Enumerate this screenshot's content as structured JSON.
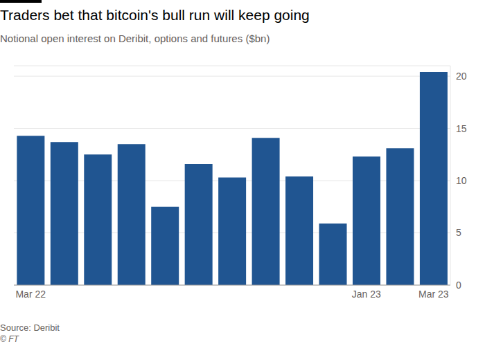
{
  "chart_data": {
    "type": "bar",
    "title": "Traders bet that bitcoin's bull run will keep going",
    "subtitle": "Notional open interest on Deribit, options and futures ($bn)",
    "source": "Source: Deribit",
    "copyright": "© FT",
    "categories": [
      "Mar 22",
      null,
      null,
      null,
      null,
      null,
      null,
      null,
      null,
      null,
      "Jan 23",
      null,
      "Mar 23"
    ],
    "values": [
      14.3,
      13.7,
      12.5,
      13.5,
      7.5,
      11.6,
      10.3,
      14.1,
      10.4,
      5.9,
      12.3,
      13.1,
      20.4
    ],
    "color": "#205591",
    "ylim": [
      0,
      21
    ],
    "yticks": [
      0,
      5,
      10,
      15,
      20
    ],
    "grid": true
  }
}
